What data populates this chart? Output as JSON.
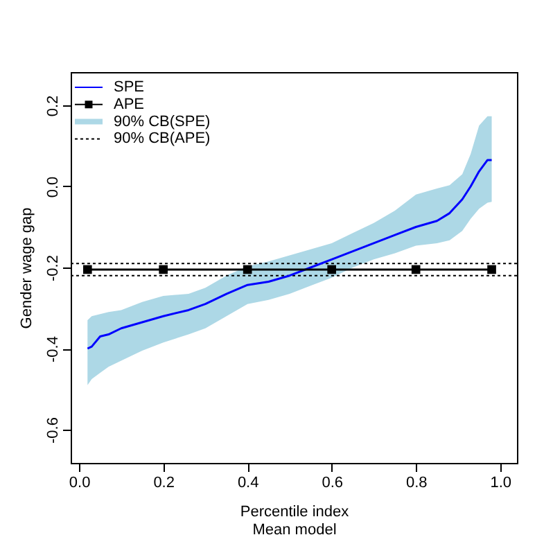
{
  "chart_data": {
    "type": "line",
    "xlabel": "Percentile index\nMean model",
    "ylabel": "Gender wage gap",
    "xlim": [
      -0.02,
      1.04
    ],
    "ylim": [
      -0.682,
      0.282
    ],
    "xticks": [
      {
        "value": 0,
        "label": "0.0"
      },
      0.2,
      0.4,
      0.6,
      0.8,
      {
        "value": 1,
        "label": "1.0"
      }
    ],
    "yticks": [
      {
        "value": -0.6,
        "label": "-0.6"
      },
      {
        "value": -0.4,
        "label": "-0.4"
      },
      {
        "value": -0.2,
        "label": "-0.2"
      },
      {
        "value": 0,
        "label": "0.0"
      },
      0.2
    ],
    "grid": false,
    "legend": "top left",
    "series": [
      {
        "name": "SPE",
        "color": "#0000ff",
        "line_style": "solid",
        "marker": "none",
        "x": [
          0.02,
          0.03,
          0.05,
          0.07,
          0.1,
          0.15,
          0.2,
          0.26,
          0.3,
          0.35,
          0.4,
          0.45,
          0.5,
          0.55,
          0.6,
          0.65,
          0.7,
          0.75,
          0.8,
          0.85,
          0.88,
          0.91,
          0.93,
          0.95,
          0.97,
          0.98
        ],
        "values": [
          -0.4,
          -0.395,
          -0.37,
          -0.365,
          -0.35,
          -0.335,
          -0.32,
          -0.305,
          -0.29,
          -0.265,
          -0.243,
          -0.235,
          -0.22,
          -0.2,
          -0.18,
          -0.16,
          -0.14,
          -0.12,
          -0.1,
          -0.085,
          -0.066,
          -0.032,
          0.0,
          0.037,
          0.065,
          0.065
        ],
        "lower": [
          -0.49,
          -0.475,
          -0.46,
          -0.445,
          -0.43,
          -0.405,
          -0.385,
          -0.365,
          -0.35,
          -0.32,
          -0.29,
          -0.28,
          -0.265,
          -0.245,
          -0.225,
          -0.2,
          -0.18,
          -0.165,
          -0.146,
          -0.14,
          -0.133,
          -0.11,
          -0.08,
          -0.055,
          -0.04,
          -0.038
        ],
        "upper": [
          -0.33,
          -0.32,
          -0.315,
          -0.31,
          -0.305,
          -0.285,
          -0.27,
          -0.265,
          -0.25,
          -0.22,
          -0.197,
          -0.185,
          -0.17,
          -0.155,
          -0.14,
          -0.115,
          -0.09,
          -0.06,
          -0.02,
          -0.005,
          0.003,
          0.03,
          0.08,
          0.15,
          0.173,
          0.173
        ]
      },
      {
        "name": "APE",
        "color": "#000000",
        "line_style": "solid",
        "marker": "square",
        "x": [
          0.02,
          0.2,
          0.4,
          0.6,
          0.8,
          0.98
        ],
        "values": [
          -0.205,
          -0.205,
          -0.205,
          -0.205,
          -0.205,
          -0.205
        ]
      }
    ],
    "annotations": [
      "90% CB(SPE)"
    ],
    "ref_lines": [
      {
        "axis": "y",
        "value": -0.19,
        "label": "90% CB(APE)",
        "color": "#000000",
        "line_style": "dotted"
      },
      {
        "axis": "y",
        "value": -0.22,
        "color": "#000000",
        "line_style": "dotted"
      }
    ]
  }
}
